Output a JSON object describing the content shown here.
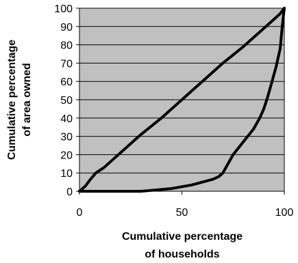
{
  "chart_data": {
    "type": "line",
    "title": "",
    "xlabel": [
      "Cumulative percentage",
      "of households"
    ],
    "ylabel": [
      "Cumulative percentage",
      "of area owned"
    ],
    "xlim": [
      0,
      100
    ],
    "ylim": [
      0,
      100
    ],
    "x_ticks": [
      0,
      50,
      100
    ],
    "y_ticks": [
      0,
      10,
      20,
      30,
      40,
      50,
      60,
      70,
      80,
      90,
      100
    ],
    "grid": "horizontal",
    "plot_background": "#c0c0c0",
    "line_color": "#000000",
    "series": [
      {
        "x": [
          0,
          3,
          5,
          8,
          12,
          20,
          30,
          40,
          50,
          60,
          70,
          80,
          90,
          95,
          98,
          100
        ],
        "values": [
          0,
          3,
          6,
          10,
          13,
          21,
          31,
          40,
          50,
          60,
          70,
          79,
          89,
          94,
          97,
          100
        ]
      },
      {
        "x": [
          0,
          30,
          35,
          45,
          50,
          55,
          60,
          65,
          68,
          70,
          72,
          75,
          80,
          85,
          88,
          90,
          92,
          94,
          96,
          98,
          99,
          100
        ],
        "values": [
          0,
          0,
          0.5,
          1.5,
          2.5,
          3.5,
          5,
          6.5,
          8,
          10,
          14,
          20,
          27,
          34,
          40,
          45,
          52,
          60,
          68,
          78,
          90,
          100
        ]
      }
    ]
  }
}
